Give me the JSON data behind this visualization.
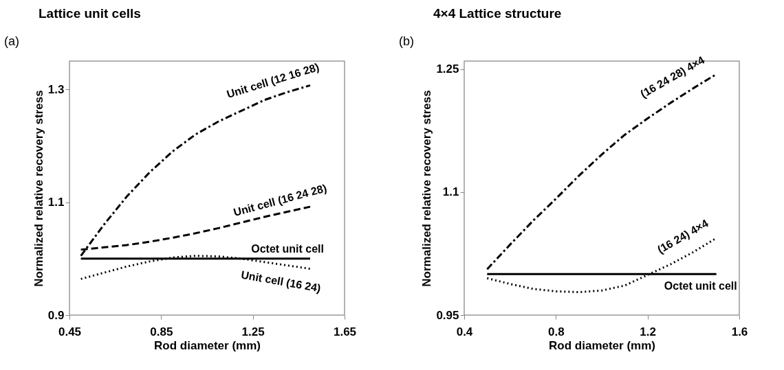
{
  "chart_data": [
    {
      "type": "line",
      "title": "Lattice unit cells",
      "annotations": [
        "(a)"
      ],
      "xlabel": "Rod diameter (mm)",
      "ylabel": "Normalized relative recovery stress",
      "x": [
        0.5,
        0.6,
        0.7,
        0.8,
        0.9,
        1.0,
        1.1,
        1.2,
        1.3,
        1.4,
        1.5
      ],
      "xlim": [
        0.45,
        1.65
      ],
      "xticks": [
        0.45,
        0.85,
        1.25,
        1.65
      ],
      "ylim": [
        0.9,
        1.35
      ],
      "yticks": [
        0.9,
        1.1,
        1.3
      ],
      "grid": false,
      "legend": false,
      "series": [
        {
          "name": "Unit cell (12 16 28)",
          "color": "#000000",
          "line_style": "dashdot",
          "values": [
            1.005,
            1.06,
            1.11,
            1.153,
            1.19,
            1.22,
            1.243,
            1.262,
            1.281,
            1.295,
            1.307
          ]
        },
        {
          "name": "Unit cell (16 24 28)",
          "color": "#000000",
          "line_style": "dashed",
          "values": [
            1.016,
            1.02,
            1.024,
            1.03,
            1.037,
            1.045,
            1.054,
            1.064,
            1.074,
            1.083,
            1.092
          ]
        },
        {
          "name": "Octet unit cell",
          "color": "#000000",
          "line_style": "solid",
          "values": [
            1.0,
            1.0,
            1.0,
            1.0,
            1.0,
            1.0,
            1.0,
            1.0,
            1.0,
            1.0,
            1.0
          ]
        },
        {
          "name": "Unit cell (16 24)",
          "color": "#000000",
          "line_style": "dotted",
          "values": [
            0.964,
            0.975,
            0.986,
            0.995,
            1.002,
            1.005,
            1.004,
            1.0,
            0.994,
            0.988,
            0.982
          ]
        }
      ]
    },
    {
      "type": "line",
      "title": "4×4 Lattice structure",
      "annotations": [
        "(b)"
      ],
      "xlabel": "Rod diameter (mm)",
      "ylabel": "Normalized relative recovery stress",
      "x": [
        0.5,
        0.6,
        0.7,
        0.8,
        0.9,
        1.0,
        1.1,
        1.2,
        1.3,
        1.4,
        1.5
      ],
      "xlim": [
        0.4,
        1.6
      ],
      "xticks": [
        0.4,
        0.8,
        1.2,
        1.6
      ],
      "ylim": [
        0.95,
        1.26
      ],
      "yticks": [
        0.95,
        1.1,
        1.25
      ],
      "grid": false,
      "legend": false,
      "series": [
        {
          "name": "(16 24 28) 4×4",
          "color": "#000000",
          "line_style": "dashdot",
          "values": [
            1.006,
            1.036,
            1.065,
            1.092,
            1.12,
            1.146,
            1.17,
            1.19,
            1.209,
            1.227,
            1.244
          ]
        },
        {
          "name": "Octet unit cell",
          "color": "#000000",
          "line_style": "solid",
          "values": [
            1.0,
            1.0,
            1.0,
            1.0,
            1.0,
            1.0,
            1.0,
            1.0,
            1.0,
            1.0,
            1.0
          ]
        },
        {
          "name": "(16 24) 4×4",
          "color": "#000000",
          "line_style": "dotted",
          "values": [
            0.995,
            0.988,
            0.982,
            0.979,
            0.978,
            0.98,
            0.986,
            0.999,
            1.012,
            1.027,
            1.044
          ]
        }
      ]
    }
  ]
}
